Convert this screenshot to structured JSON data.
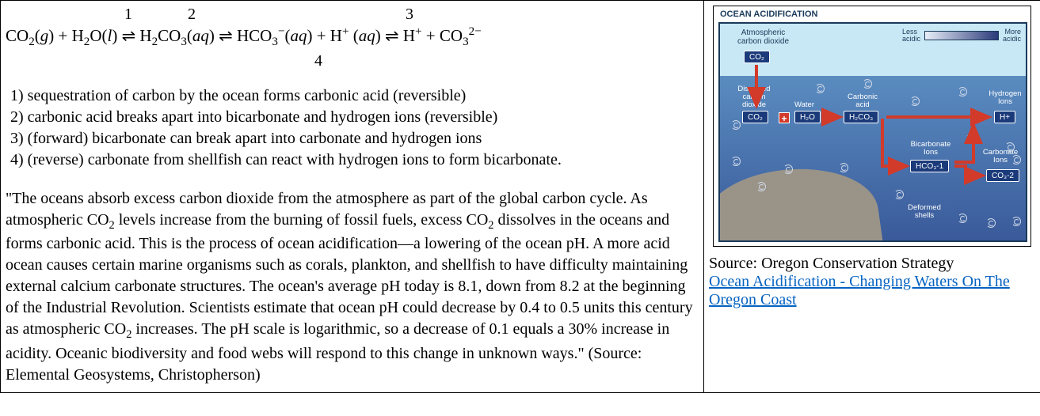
{
  "equation": {
    "num1": "1",
    "num2": "2",
    "num3": "3",
    "num4": "4",
    "text_html": "CO<sub>2</sub>(<i>g</i>) + H<sub>2</sub>O(<i>l</i>) ⇌ H<sub>2</sub>CO<sub>3</sub>(<i>aq</i>) ⇌ HCO<sub>3</sub><sup>−</sup>(<i>aq</i>) + H<sup>+</sup> (<i>aq</i>) ⇌ H<sup>+</sup> + CO<sub>3</sub><sup>2−</sup>"
  },
  "steps": {
    "s1": "1) sequestration of carbon by the ocean forms carbonic acid (reversible)",
    "s2": "2) carbonic acid breaks apart into bicarbonate and hydrogen ions (reversible)",
    "s3": "3) (forward) bicarbonate can break apart into carbonate and hydrogen ions",
    "s4": "4) (reverse) carbonate from shellfish can react with hydrogen ions to form bicarbonate."
  },
  "quote_html": "\"The oceans absorb excess carbon dioxide from the atmosphere as part of the global carbon cycle. As atmospheric CO<sub>2</sub> levels increase from the burning of fossil fuels, excess CO<sub>2</sub> dissolves in the oceans and forms carbonic acid. This is the process of ocean acidification—a lowering of the ocean pH. A more acid ocean causes certain marine organisms such as corals, plankton, and shellfish to have difficulty maintaining external calcium carbonate structures. The ocean's average pH today is 8.1, down from 8.2 at the beginning of the Industrial Revolution. Scientists estimate that ocean pH could decrease by 0.4 to 0.5 units this century as atmospheric CO<sub>2</sub> increases. The pH scale is logarithmic, so a decrease of 0.1 equals a 30% increase in acidity. Oceanic biodiversity and food webs will respond to this change in unknown ways.\" (Source: Elemental Geosystems, Christopherson)",
  "source_line": "Source: Oregon Conservation Strategy",
  "source_link": "Ocean Acidification - Changing Waters On The Oregon Coast",
  "diagram": {
    "title": "OCEAN ACIDIFICATION",
    "legend_left": "Less acidic",
    "legend_right": "More acidic",
    "atmospheric_label": "Atmospheric carbon dioxide",
    "dissolved_label": "Dissolved carbon dioxide",
    "water_label": "Water",
    "carbonic_label": "Carbonic acid",
    "bicarb_label": "Bicarbonate Ions",
    "hydrogen_label": "Hydrogen Ions",
    "carbonate_label": "Carbonate Ions",
    "deformed_label": "Deformed shells",
    "co2": "CO₂",
    "h2o": "H₂O",
    "h2co3": "H₂CO₃",
    "hco3": "HCO₃-1",
    "hplus": "H+",
    "co3": "CO₃-2",
    "colors": {
      "sky": "#c9e8f5",
      "ocean_top": "#5a8cc0",
      "ocean_bottom": "#3a5a9a",
      "box_fill": "#1a3a7a",
      "arrow": "#d23a2a",
      "border": "#1a3a5a",
      "seafloor": "#9a9488",
      "link": "#0563c1"
    }
  }
}
